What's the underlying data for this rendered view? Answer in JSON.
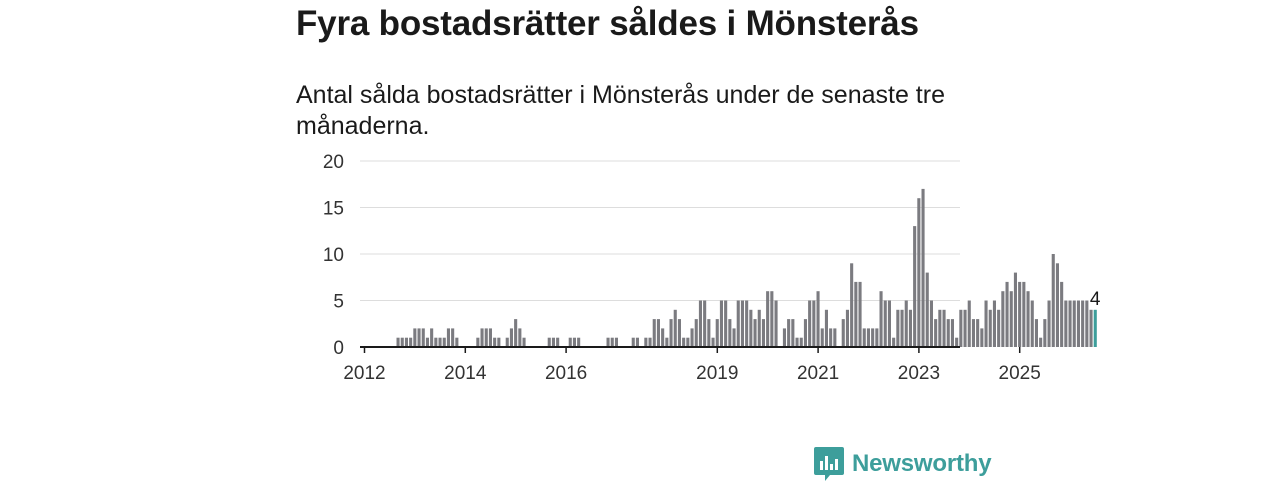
{
  "header": {
    "title": "Fyra bostadsrätter såldes i Mönsterås",
    "subtitle": "Antal sålda bostadsrätter i Mönsterås under de senaste tre månaderna."
  },
  "brand": {
    "name": "Newsworthy",
    "color": "#3d9e9b"
  },
  "chart_data": {
    "type": "bar",
    "title": "",
    "xlabel": "",
    "ylabel": "",
    "ylim": [
      0,
      20
    ],
    "yticks": [
      "0",
      "5",
      "10",
      "15",
      "20"
    ],
    "xticks": [
      {
        "label": "2012",
        "year": 2012
      },
      {
        "label": "2014",
        "year": 2014
      },
      {
        "label": "2016",
        "year": 2016
      },
      {
        "label": "2019",
        "year": 2019
      },
      {
        "label": "2021",
        "year": 2021
      },
      {
        "label": "2023",
        "year": 2023
      },
      {
        "label": "2025",
        "year": 2025
      }
    ],
    "grid": true,
    "bar_color": "#7b7b80",
    "highlight_color": "#3d9e9b",
    "start_month": "2011-11",
    "values": [
      0,
      0,
      0,
      0,
      0,
      0,
      0,
      0,
      0,
      1,
      1,
      1,
      1,
      2,
      2,
      2,
      1,
      2,
      1,
      1,
      1,
      2,
      2,
      1,
      0,
      0,
      0,
      0,
      1,
      2,
      2,
      2,
      1,
      1,
      0,
      1,
      2,
      3,
      2,
      1,
      0,
      0,
      0,
      0,
      0,
      1,
      1,
      1,
      0,
      0,
      1,
      1,
      1,
      0,
      0,
      0,
      0,
      0,
      0,
      1,
      1,
      1,
      0,
      0,
      0,
      1,
      1,
      0,
      1,
      1,
      3,
      3,
      2,
      1,
      3,
      4,
      3,
      1,
      1,
      2,
      3,
      5,
      5,
      3,
      1,
      3,
      5,
      5,
      3,
      2,
      5,
      5,
      5,
      4,
      3,
      4,
      3,
      6,
      6,
      5,
      0,
      2,
      3,
      3,
      1,
      1,
      3,
      5,
      5,
      6,
      2,
      4,
      2,
      2,
      0,
      3,
      4,
      9,
      7,
      7,
      2,
      2,
      2,
      2,
      6,
      5,
      5,
      1,
      4,
      4,
      5,
      4,
      13,
      16,
      17,
      8,
      5,
      3,
      4,
      4,
      3,
      3,
      1,
      4,
      4,
      5,
      3,
      3,
      2,
      5,
      4,
      5,
      4,
      6,
      7,
      6,
      8,
      7,
      7,
      6,
      5,
      3,
      1,
      3,
      5,
      10,
      9,
      7,
      5,
      5,
      5,
      5,
      5,
      5,
      4
    ],
    "highlight_value": 4,
    "highlight_label": "4"
  }
}
